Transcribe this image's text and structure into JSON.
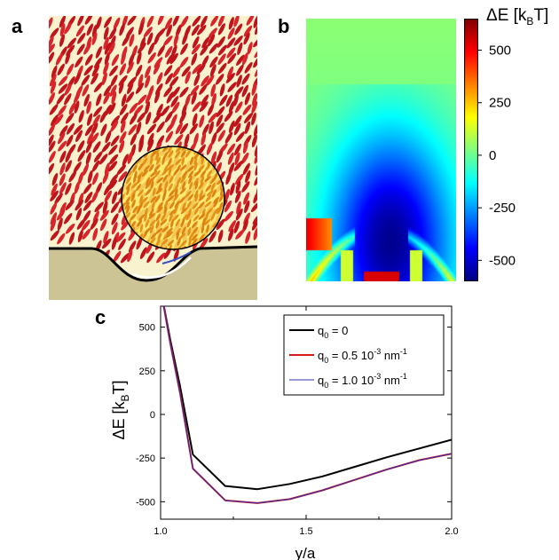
{
  "panels": {
    "a": "a",
    "b": "b",
    "c": "c"
  },
  "colorbar": {
    "label_main": "ΔE [k",
    "label_sub": "B",
    "label_end": "T]",
    "ticks": [
      {
        "value": 500,
        "label": "500"
      },
      {
        "value": 250,
        "label": "250"
      },
      {
        "value": 0,
        "label": "0"
      },
      {
        "value": -250,
        "label": "-250"
      },
      {
        "value": -500,
        "label": "-500"
      }
    ],
    "range": [
      -600,
      650
    ],
    "colormap": "jet"
  },
  "chart_data": {
    "type": "line",
    "xlabel": "y/a",
    "ylabel": {
      "main": "ΔE [k",
      "sub": "B",
      "end": "T]"
    },
    "xlim": [
      1.0,
      2.0
    ],
    "ylim": [
      -600,
      620
    ],
    "xticks": [
      {
        "value": 1.0,
        "label": "1.0"
      },
      {
        "value": 1.5,
        "label": "1.5"
      },
      {
        "value": 2.0,
        "label": "2.0"
      }
    ],
    "yticks": [
      {
        "value": 500,
        "label": "500"
      },
      {
        "value": 250,
        "label": "250"
      },
      {
        "value": 0,
        "label": "0"
      },
      {
        "value": -250,
        "label": "-250"
      },
      {
        "value": -500,
        "label": "-500"
      }
    ],
    "legend_position": "top-right",
    "series": [
      {
        "legend": {
          "main": "q",
          "sub": "0",
          "rest": " = 0",
          "sup": ""
        },
        "color": "#000000",
        "width": 2,
        "x": [
          1.0,
          1.033,
          1.067,
          1.111,
          1.222,
          1.333,
          1.444,
          1.556,
          1.667,
          1.778,
          1.889,
          2.0
        ],
        "y": [
          720,
          430,
          160,
          -230,
          -410,
          -428,
          -398,
          -355,
          -300,
          -245,
          -195,
          -145
        ]
      },
      {
        "legend": {
          "main": "q",
          "sub": "0",
          "rest": " = 0.5 10",
          "sup": "-3",
          "tail": " nm",
          "sup2": "-1"
        },
        "color": "#d7191c",
        "width": 2,
        "x": [
          1.0,
          1.033,
          1.067,
          1.111,
          1.222,
          1.333,
          1.444,
          1.556,
          1.667,
          1.778,
          1.889,
          2.0
        ],
        "y": [
          720,
          410,
          120,
          -310,
          -492,
          -508,
          -485,
          -435,
          -375,
          -315,
          -262,
          -225
        ]
      },
      {
        "legend": {
          "main": "q",
          "sub": "0",
          "rest": " = 1.0 10",
          "sup": "-3",
          "tail": " nm",
          "sup2": "-1"
        },
        "color": "#2c2cb0",
        "width": 1,
        "x": [
          1.0,
          1.033,
          1.067,
          1.111,
          1.222,
          1.333,
          1.444,
          1.556,
          1.667,
          1.778,
          1.889,
          2.0
        ],
        "y": [
          720,
          410,
          120,
          -310,
          -492,
          -508,
          -485,
          -435,
          -375,
          -315,
          -262,
          -225
        ]
      }
    ]
  }
}
